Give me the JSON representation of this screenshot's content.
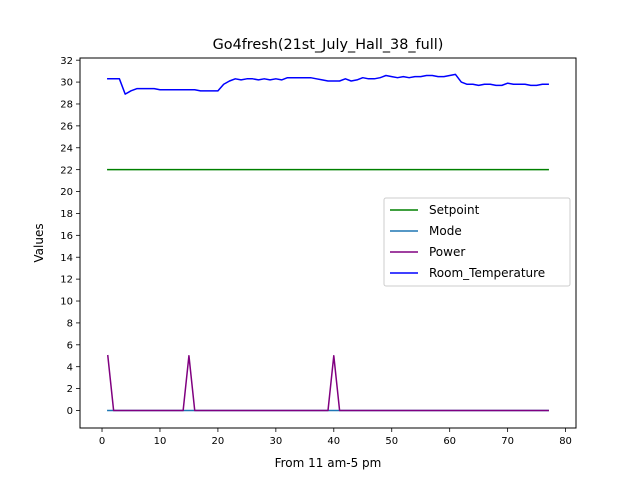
{
  "chart_data": {
    "type": "line",
    "title": "Go4fresh(21st_July_Hall_38_full)",
    "xlabel": "From 11 am-5 pm",
    "ylabel": "Values",
    "xlim": [
      -3.8,
      81.8
    ],
    "ylim": [
      -1.6,
      32.2
    ],
    "xticks": [
      0,
      10,
      20,
      30,
      40,
      50,
      60,
      70,
      80
    ],
    "yticks": [
      0,
      2,
      4,
      6,
      8,
      10,
      12,
      14,
      16,
      18,
      20,
      22,
      24,
      26,
      28,
      30,
      32
    ],
    "grid": false,
    "legend_position": "center-right",
    "series": [
      {
        "name": "Setpoint",
        "color": "#008000",
        "x": [
          1,
          77
        ],
        "y": [
          22,
          22
        ]
      },
      {
        "name": "Mode",
        "color": "#1f77b4",
        "x": [
          1,
          77
        ],
        "y": [
          0,
          0
        ]
      },
      {
        "name": "Power",
        "color": "#800080",
        "x": [
          1,
          2,
          14,
          15,
          16,
          39,
          40,
          41,
          77
        ],
        "y": [
          5,
          0,
          0,
          5,
          0,
          0,
          5,
          0,
          0
        ]
      },
      {
        "name": "Room_Temperature",
        "color": "#0000ff",
        "x": [
          1,
          2,
          3,
          4,
          5,
          6,
          7,
          8,
          9,
          10,
          11,
          12,
          13,
          14,
          15,
          16,
          17,
          18,
          19,
          20,
          21,
          22,
          23,
          24,
          25,
          26,
          27,
          28,
          29,
          30,
          31,
          32,
          33,
          34,
          35,
          36,
          37,
          38,
          39,
          40,
          41,
          42,
          43,
          44,
          45,
          46,
          47,
          48,
          49,
          50,
          51,
          52,
          53,
          54,
          55,
          56,
          57,
          58,
          59,
          60,
          61,
          62,
          63,
          64,
          65,
          66,
          67,
          68,
          69,
          70,
          71,
          72,
          73,
          74,
          75,
          76,
          77
        ],
        "y": [
          30.3,
          30.3,
          30.3,
          28.9,
          29.2,
          29.4,
          29.4,
          29.4,
          29.4,
          29.3,
          29.3,
          29.3,
          29.3,
          29.3,
          29.3,
          29.3,
          29.2,
          29.2,
          29.2,
          29.2,
          29.8,
          30.1,
          30.3,
          30.2,
          30.3,
          30.3,
          30.2,
          30.3,
          30.2,
          30.3,
          30.2,
          30.4,
          30.4,
          30.4,
          30.4,
          30.4,
          30.3,
          30.2,
          30.1,
          30.1,
          30.1,
          30.3,
          30.1,
          30.2,
          30.4,
          30.3,
          30.3,
          30.4,
          30.6,
          30.5,
          30.4,
          30.5,
          30.4,
          30.5,
          30.5,
          30.6,
          30.6,
          30.5,
          30.5,
          30.6,
          30.7,
          30.0,
          29.8,
          29.8,
          29.7,
          29.8,
          29.8,
          29.7,
          29.7,
          29.9,
          29.8,
          29.8,
          29.8,
          29.7,
          29.7,
          29.8,
          29.8
        ]
      }
    ]
  }
}
